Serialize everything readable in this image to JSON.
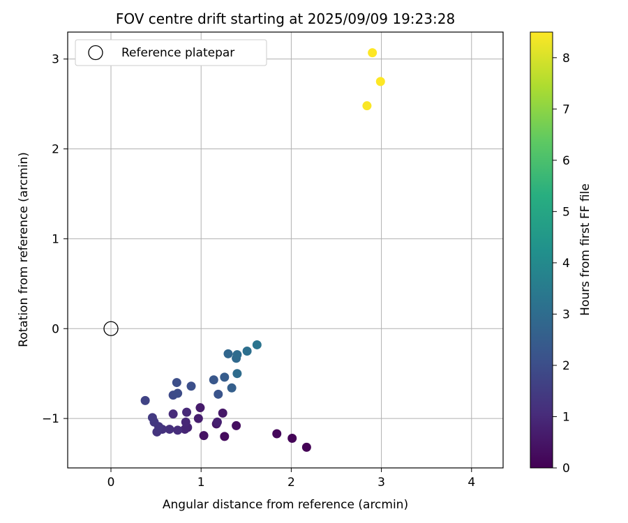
{
  "chart_data": {
    "type": "scatter",
    "title": "FOV centre drift starting at 2025/09/09 19:23:28",
    "xlabel": "Angular distance from reference (arcmin)",
    "ylabel": "Rotation from reference (arcmin)",
    "xlim": [
      -0.48,
      4.35
    ],
    "ylim": [
      -1.55,
      3.3
    ],
    "xticks": [
      0,
      1,
      2,
      3,
      4
    ],
    "yticks": [
      -1,
      0,
      1,
      2,
      3
    ],
    "grid": true,
    "legend": {
      "placement": "top-left",
      "entries": [
        "Reference platepar"
      ]
    },
    "reference_point": {
      "x": 0,
      "y": 0
    },
    "colorbar": {
      "label": "Hours from first FF file",
      "range": [
        0,
        8.5
      ],
      "ticks": [
        0,
        1,
        2,
        3,
        4,
        5,
        6,
        7,
        8
      ],
      "colormap": "viridis"
    },
    "points": [
      {
        "x": 2.17,
        "y": -1.32,
        "hours": 0.02
      },
      {
        "x": 2.01,
        "y": -1.22,
        "hours": 0.08
      },
      {
        "x": 1.84,
        "y": -1.17,
        "hours": 0.15
      },
      {
        "x": 1.26,
        "y": -1.2,
        "hours": 0.25
      },
      {
        "x": 1.39,
        "y": -1.08,
        "hours": 0.32
      },
      {
        "x": 1.03,
        "y": -1.19,
        "hours": 0.4
      },
      {
        "x": 1.17,
        "y": -1.06,
        "hours": 0.48
      },
      {
        "x": 1.24,
        "y": -0.94,
        "hours": 0.55
      },
      {
        "x": 0.99,
        "y": -0.88,
        "hours": 0.62
      },
      {
        "x": 0.97,
        "y": -1.0,
        "hours": 0.7
      },
      {
        "x": 1.18,
        "y": -1.04,
        "hours": 0.76
      },
      {
        "x": 0.85,
        "y": -1.1,
        "hours": 0.82
      },
      {
        "x": 0.82,
        "y": -1.12,
        "hours": 0.88
      },
      {
        "x": 0.83,
        "y": -1.04,
        "hours": 0.92
      },
      {
        "x": 0.84,
        "y": -0.93,
        "hours": 0.97
      },
      {
        "x": 0.69,
        "y": -0.95,
        "hours": 1.02
      },
      {
        "x": 0.74,
        "y": -1.13,
        "hours": 1.08
      },
      {
        "x": 0.65,
        "y": -1.12,
        "hours": 1.14
      },
      {
        "x": 0.57,
        "y": -1.12,
        "hours": 1.2
      },
      {
        "x": 0.51,
        "y": -1.15,
        "hours": 1.26
      },
      {
        "x": 0.53,
        "y": -1.09,
        "hours": 1.32
      },
      {
        "x": 0.48,
        "y": -1.04,
        "hours": 1.38
      },
      {
        "x": 0.46,
        "y": -0.99,
        "hours": 1.45
      },
      {
        "x": 0.38,
        "y": -0.8,
        "hours": 1.7
      },
      {
        "x": 0.69,
        "y": -0.74,
        "hours": 1.9
      },
      {
        "x": 0.74,
        "y": -0.72,
        "hours": 1.95
      },
      {
        "x": 0.73,
        "y": -0.6,
        "hours": 2.0
      },
      {
        "x": 0.89,
        "y": -0.64,
        "hours": 2.05
      },
      {
        "x": 1.19,
        "y": -0.73,
        "hours": 2.2
      },
      {
        "x": 1.14,
        "y": -0.57,
        "hours": 2.3
      },
      {
        "x": 1.26,
        "y": -0.54,
        "hours": 2.45
      },
      {
        "x": 1.34,
        "y": -0.66,
        "hours": 2.55
      },
      {
        "x": 1.3,
        "y": -0.28,
        "hours": 2.8
      },
      {
        "x": 1.39,
        "y": -0.33,
        "hours": 2.9
      },
      {
        "x": 1.4,
        "y": -0.29,
        "hours": 2.95
      },
      {
        "x": 1.4,
        "y": -0.5,
        "hours": 3.0
      },
      {
        "x": 1.51,
        "y": -0.25,
        "hours": 3.1
      },
      {
        "x": 1.62,
        "y": -0.18,
        "hours": 3.25
      },
      {
        "x": 2.84,
        "y": 2.48,
        "hours": 8.45
      },
      {
        "x": 2.99,
        "y": 2.75,
        "hours": 8.5
      },
      {
        "x": 2.9,
        "y": 3.07,
        "hours": 8.55
      }
    ]
  }
}
